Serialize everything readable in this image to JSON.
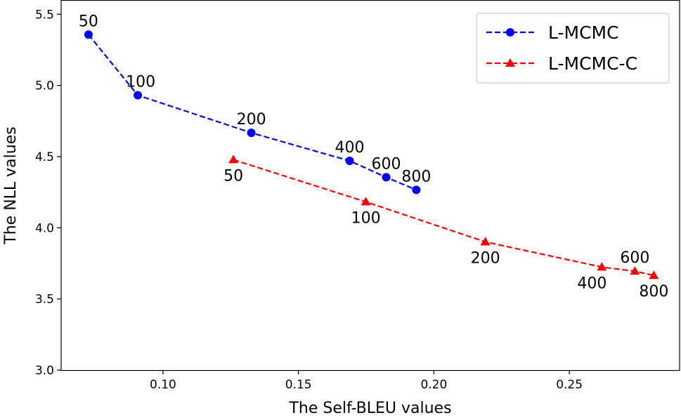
{
  "chart_data": {
    "type": "line",
    "title": "",
    "xlabel": "The Self-BLEU values",
    "ylabel": "The NLL values",
    "xlim": [
      0.0624,
      0.2907
    ],
    "ylim": [
      3.0,
      5.6
    ],
    "xticks": [
      0.1,
      0.15,
      0.2,
      0.25
    ],
    "xtick_labels": [
      "0.10",
      "0.15",
      "0.20",
      "0.25"
    ],
    "yticks": [
      3.0,
      3.5,
      4.0,
      4.5,
      5.0,
      5.5
    ],
    "ytick_labels": [
      "3.0",
      "3.5",
      "4.0",
      "4.5",
      "5.0",
      "5.5"
    ],
    "grid": false,
    "legend_position": "top-right",
    "series": [
      {
        "name": "L-MCMC",
        "color": "#0000ff",
        "marker": "circle",
        "x": [
          0.0725,
          0.0907,
          0.1326,
          0.1689,
          0.1824,
          0.1935
        ],
        "y": [
          5.357,
          4.931,
          4.667,
          4.47,
          4.355,
          4.266
        ],
        "point_labels": [
          "50",
          "100",
          "200",
          "400",
          "600",
          "800"
        ]
      },
      {
        "name": "L-MCMC-C",
        "color": "#ff0000",
        "marker": "triangle",
        "x": [
          0.126,
          0.1749,
          0.219,
          0.262,
          0.2742,
          0.2812
        ],
        "y": [
          4.478,
          4.182,
          3.901,
          3.724,
          3.695,
          3.665
        ],
        "point_labels": [
          "50",
          "100",
          "200",
          "400",
          "600",
          "800"
        ]
      }
    ]
  }
}
